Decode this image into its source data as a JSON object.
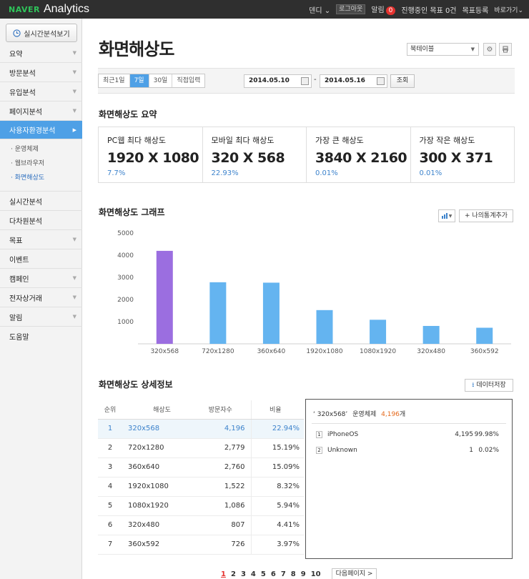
{
  "topbar": {
    "logo_brand": "NAVER",
    "logo_product": "Analytics",
    "user": "덴디 ⌄",
    "logout": "로그아웃",
    "alerts_label": "알림",
    "alerts_count": "0",
    "goals_running": "진행중인 목표 0건",
    "goal_register": "목표등록",
    "shortcut": "바로가기⌄"
  },
  "sidebar": {
    "realtime_btn": "실시간분석보기",
    "items": [
      {
        "label": "요약"
      },
      {
        "label": "방문분석"
      },
      {
        "label": "유입분석"
      },
      {
        "label": "페이지분석"
      },
      {
        "label": "사용자환경분석"
      }
    ],
    "subitems": [
      "운영체제",
      "웹브라우저",
      "화면해상도"
    ],
    "items_bottom": [
      {
        "label": "실시간분석"
      },
      {
        "label": "다차원분석"
      },
      {
        "label": "목표"
      },
      {
        "label": "이벤트"
      },
      {
        "label": "캠페인"
      },
      {
        "label": "전자상거래"
      },
      {
        "label": "알림"
      },
      {
        "label": "도움말"
      }
    ]
  },
  "header": {
    "title": "화면해상도",
    "bookmark_select": "북테이블"
  },
  "filter": {
    "tabs": [
      "최근1일",
      "7일",
      "30일",
      "직접입력"
    ],
    "selected_tab": "7일",
    "date_from": "2014.05.10",
    "date_to": "2014.05.16",
    "search_btn": "조회"
  },
  "summary": {
    "title": "화면해상도 요약",
    "cards": [
      {
        "label": "PC웹 최다 해상도",
        "value": "1920 X 1080",
        "pct": "7.7%"
      },
      {
        "label": "모바일 최다 해상도",
        "value": "320 X 568",
        "pct": "22.93%"
      },
      {
        "label": "가장 큰 해상도",
        "value": "3840 X 2160",
        "pct": "0.01%"
      },
      {
        "label": "가장 작은 해상도",
        "value": "300 X 371",
        "pct": "0.01%"
      }
    ]
  },
  "graph": {
    "title": "화면해상도 그래프",
    "add_stat_btn": "+ 나의통계추가"
  },
  "chart_data": {
    "type": "bar",
    "categories": [
      "320x568",
      "720x1280",
      "360x640",
      "1920x1080",
      "1080x1920",
      "320x480",
      "360x592"
    ],
    "values": [
      4196,
      2779,
      2760,
      1522,
      1086,
      807,
      726
    ],
    "ylim": [
      0,
      5000
    ],
    "yticks": [
      1000,
      2000,
      3000,
      4000,
      5000
    ],
    "highlight_color": "#9b6ee0",
    "bar_color": "#64b4f0",
    "grid": false
  },
  "detail": {
    "title": "화면해상도 상세정보",
    "export_btn": "데이터저장",
    "columns": [
      "순위",
      "해상도",
      "방문자수",
      "비율"
    ],
    "rows": [
      {
        "rank": "1",
        "res": "320x568",
        "visits": "4,196",
        "ratio": "22.94%"
      },
      {
        "rank": "2",
        "res": "720x1280",
        "visits": "2,779",
        "ratio": "15.19%"
      },
      {
        "rank": "3",
        "res": "360x640",
        "visits": "2,760",
        "ratio": "15.09%"
      },
      {
        "rank": "4",
        "res": "1920x1080",
        "visits": "1,522",
        "ratio": "8.32%"
      },
      {
        "rank": "5",
        "res": "1080x1920",
        "visits": "1,086",
        "ratio": "5.94%"
      },
      {
        "rank": "6",
        "res": "320x480",
        "visits": "807",
        "ratio": "4.41%"
      },
      {
        "rank": "7",
        "res": "360x592",
        "visits": "726",
        "ratio": "3.97%"
      }
    ]
  },
  "os_panel": {
    "selected_res": "‘ 320x568’",
    "label": "운영체제",
    "count": "4,196",
    "unit": "개",
    "rows": [
      {
        "num": "1",
        "name": "iPhoneOS",
        "count": "4,195",
        "pct": "99.98%"
      },
      {
        "num": "2",
        "name": "Unknown",
        "count": "1",
        "pct": "0.02%"
      }
    ]
  },
  "pager": {
    "pages": [
      "1",
      "2",
      "3",
      "4",
      "5",
      "6",
      "7",
      "8",
      "9",
      "10"
    ],
    "current": "1",
    "next": "다음페이지 >"
  }
}
